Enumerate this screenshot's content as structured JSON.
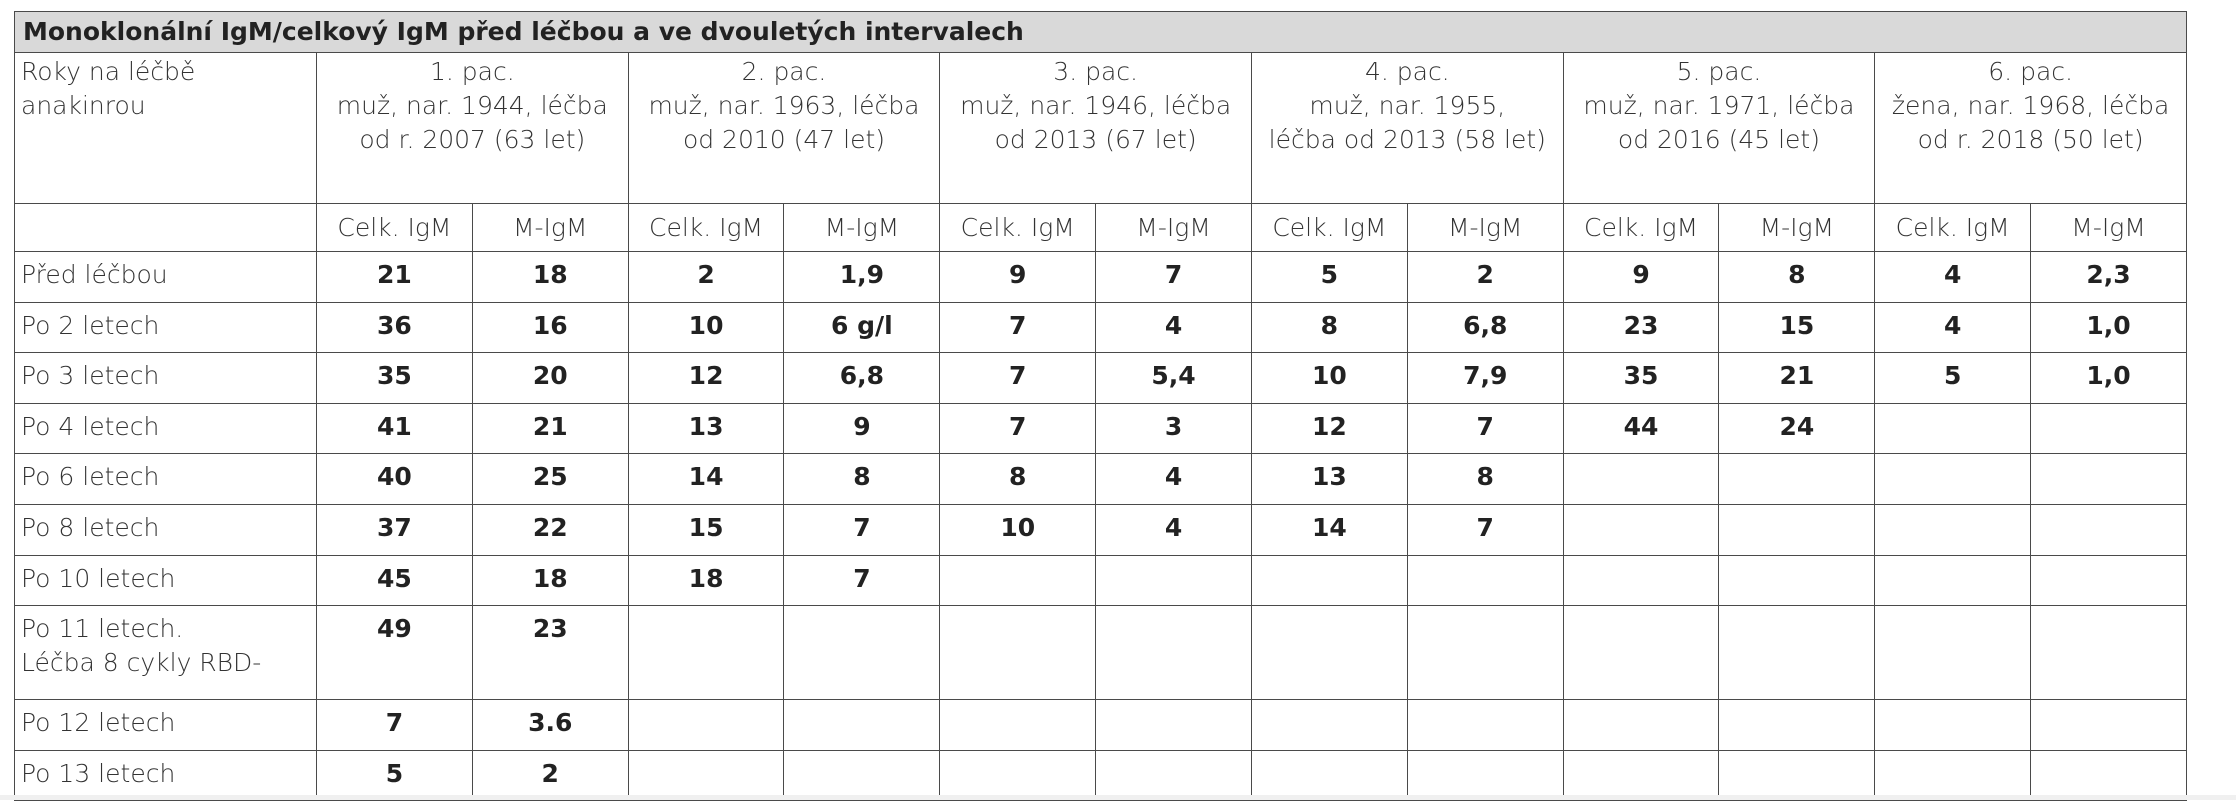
{
  "table": {
    "title": "Monoklonální IgM/celkový IgM před léčbou a ve dvouletých intervalech",
    "corner": [
      "Roky na léčbě",
      "anakinrou"
    ],
    "patients": [
      [
        "1. pac.",
        "muž, nar. 1944, léčba",
        "od r. 2007 (63 let)"
      ],
      [
        "2. pac.",
        "muž, nar. 1963, léčba",
        "od 2010 (47 let)"
      ],
      [
        "3. pac.",
        "muž, nar. 1946, léčba",
        "od 2013 (67 let)"
      ],
      [
        "4. pac.",
        "muž, nar. 1955,",
        "léčba od 2013 (58 let)"
      ],
      [
        "5. pac.",
        "muž, nar. 1971, léčba",
        "od 2016 (45 let)"
      ],
      [
        "6. pac.",
        "žena, nar. 1968, léčba",
        "od r. 2018 (50 let)"
      ]
    ],
    "subheaders": [
      "Celk. IgM",
      "M-IgM"
    ],
    "rows": [
      {
        "label": [
          "Před léčbou"
        ],
        "cells": [
          "21",
          "18",
          "2",
          "1,9",
          "9",
          "7",
          "5",
          "2",
          "9",
          "8",
          "4",
          "2,3"
        ]
      },
      {
        "label": [
          "Po 2 letech"
        ],
        "cells": [
          "36",
          "16",
          "10",
          "6 g/l",
          "7",
          "4",
          "8",
          "6,8",
          "23",
          "15",
          "4",
          "1,0"
        ]
      },
      {
        "label": [
          "Po 3 letech"
        ],
        "cells": [
          "35",
          "20",
          "12",
          "6,8",
          "7",
          "5,4",
          "10",
          "7,9",
          "35",
          "21",
          "5",
          "1,0"
        ]
      },
      {
        "label": [
          "Po 4 letech"
        ],
        "cells": [
          "41",
          "21",
          "13",
          "9",
          "7",
          "3",
          "12",
          "7",
          "44",
          "24",
          null,
          null
        ]
      },
      {
        "label": [
          "Po 6 letech"
        ],
        "cells": [
          "40",
          "25",
          "14",
          "8",
          "8",
          "4",
          "13",
          "8",
          null,
          null,
          null,
          null
        ]
      },
      {
        "label": [
          "Po 8 letech"
        ],
        "cells": [
          "37",
          "22",
          "15",
          "7",
          "10",
          "4",
          "14",
          "7",
          null,
          null,
          null,
          null
        ]
      },
      {
        "label": [
          "Po 10 letech"
        ],
        "cells": [
          "45",
          "18",
          "18",
          "7",
          null,
          null,
          null,
          null,
          null,
          null,
          null,
          null
        ]
      },
      {
        "label": [
          "Po 11 letech.",
          "Léčba 8 cykly RBD-"
        ],
        "cells": [
          "49",
          "23",
          null,
          null,
          null,
          null,
          null,
          null,
          null,
          null,
          null,
          null
        ]
      },
      {
        "label": [
          "Po 12 letech"
        ],
        "cells": [
          "7",
          "3.6",
          null,
          null,
          null,
          null,
          null,
          null,
          null,
          null,
          null,
          null
        ]
      },
      {
        "label": [
          "Po 13 letech"
        ],
        "cells": [
          "5",
          "2",
          null,
          null,
          null,
          null,
          null,
          null,
          null,
          null,
          null,
          null
        ]
      }
    ]
  }
}
